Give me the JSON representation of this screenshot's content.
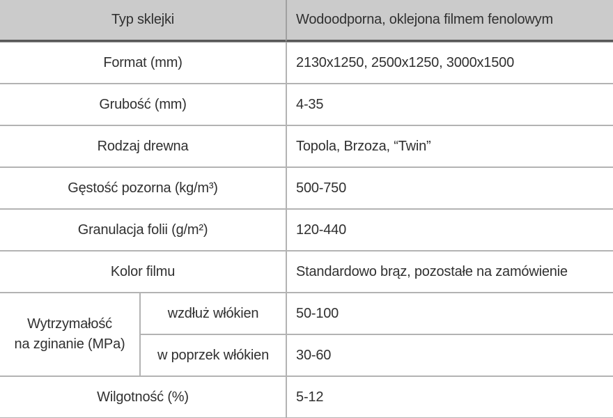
{
  "colors": {
    "header_bg": "#cbcbcb",
    "header_divider_dark": "#595959",
    "header_divider_light": "#909090",
    "grid_line": "#b3b3b3",
    "text": "#303030",
    "page_bg": "#ffffff"
  },
  "table": {
    "header": {
      "label": "Typ sklejki",
      "value": "Wodoodporna, oklejona filmem fenolowym"
    },
    "rows": [
      {
        "label": "Format (mm)",
        "value": "2130x1250, 2500x1250, 3000x1500"
      },
      {
        "label": "Grubość (mm)",
        "value": "4-35"
      },
      {
        "label": "Rodzaj drewna",
        "value": "Topola, Brzoza, “Twin”"
      },
      {
        "label": "Gęstość pozorna (kg/m³)",
        "value": "500-750"
      },
      {
        "label": "Granulacja folii (g/m²)",
        "value": "120-440"
      },
      {
        "label": "Kolor filmu",
        "value": "Standardowo brąz, pozostałe na zamówienie"
      }
    ],
    "strength_group": {
      "label_line1": "Wytrzymałość",
      "label_line2": "na zginanie (MPa)",
      "sub_rows": [
        {
          "label": "wzdłuż włókien",
          "value": "50-100"
        },
        {
          "label": "w poprzek włókien",
          "value": "30-60"
        }
      ]
    },
    "moisture_row": {
      "label": "Wilgotność (%)",
      "value": "5-12"
    }
  }
}
